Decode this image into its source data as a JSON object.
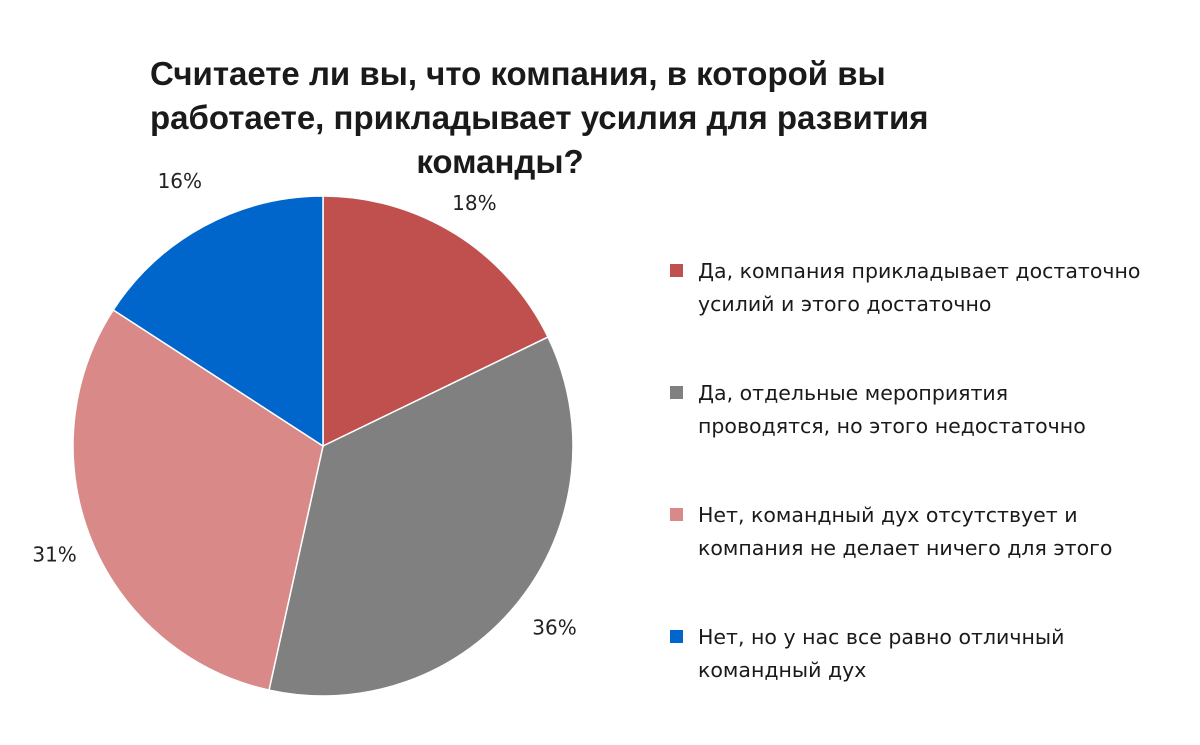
{
  "chart_data": {
    "type": "pie",
    "title_lines": [
      "Считаете ли вы, что компания, в которой вы",
      "работаете, прикладывает усилия для развития",
      "команды?"
    ],
    "legend_position": "right",
    "start_angle_deg": 0,
    "direction": "clockwise",
    "slices": [
      {
        "label_lines": [
          "Да, компания прикладывает достаточно",
          "усилий и этого достаточно"
        ],
        "value": 18,
        "display": "18%",
        "color": "#c0504d"
      },
      {
        "label_lines": [
          "Да, отдельные мероприятия",
          "проводятся, но этого недостаточно"
        ],
        "value": 36,
        "display": "36%",
        "color": "#808080"
      },
      {
        "label_lines": [
          "Нет, командный дух отсутствует и",
          "компания не делает ничего для этого"
        ],
        "value": 31,
        "display": "31%",
        "color": "#d98987"
      },
      {
        "label_lines": [
          "Нет, но у нас все равно отличный",
          "командный дух"
        ],
        "value": 16,
        "display": "16%",
        "color": "#0066cc"
      }
    ]
  }
}
